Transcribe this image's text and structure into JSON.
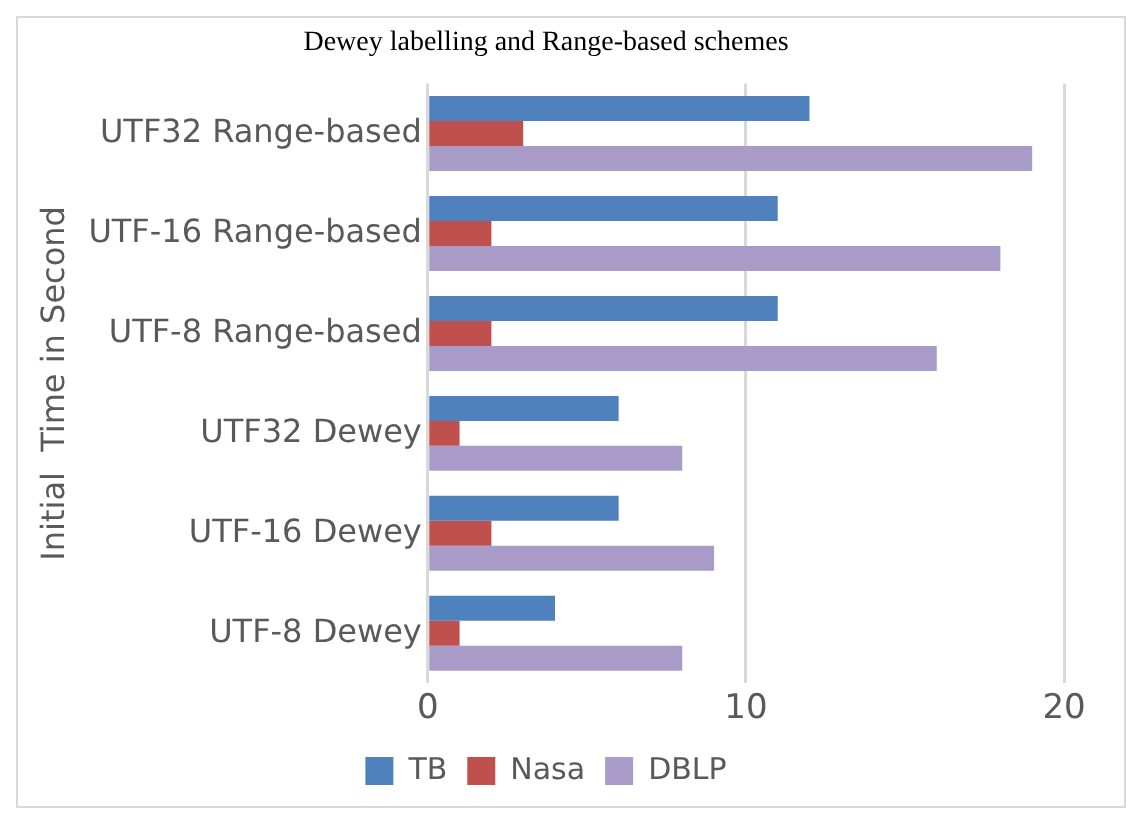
{
  "chart_data": {
    "type": "bar",
    "orientation": "horizontal",
    "title": "Dewey labelling and Range-based schemes",
    "ylabel": "Initial  Time in Second",
    "categories": [
      "UTF32 Range-based",
      "UTF-16 Range-based",
      "UTF-8 Range-based",
      "UTF32 Dewey",
      "UTF-16 Dewey",
      "UTF-8 Dewey"
    ],
    "series": [
      {
        "name": "TB",
        "color": "#4f81bd",
        "values": [
          12,
          11,
          11,
          6,
          6,
          4
        ]
      },
      {
        "name": "Nasa",
        "color": "#c0504d",
        "values": [
          3,
          2,
          2,
          1,
          2,
          1
        ]
      },
      {
        "name": "DBLP",
        "color": "#a99bc8",
        "values": [
          19,
          18,
          16,
          8,
          9,
          8
        ]
      }
    ],
    "xlim": [
      0,
      20
    ],
    "xticks": [
      0,
      10,
      20
    ],
    "grid": "x",
    "legend": "bottom"
  }
}
